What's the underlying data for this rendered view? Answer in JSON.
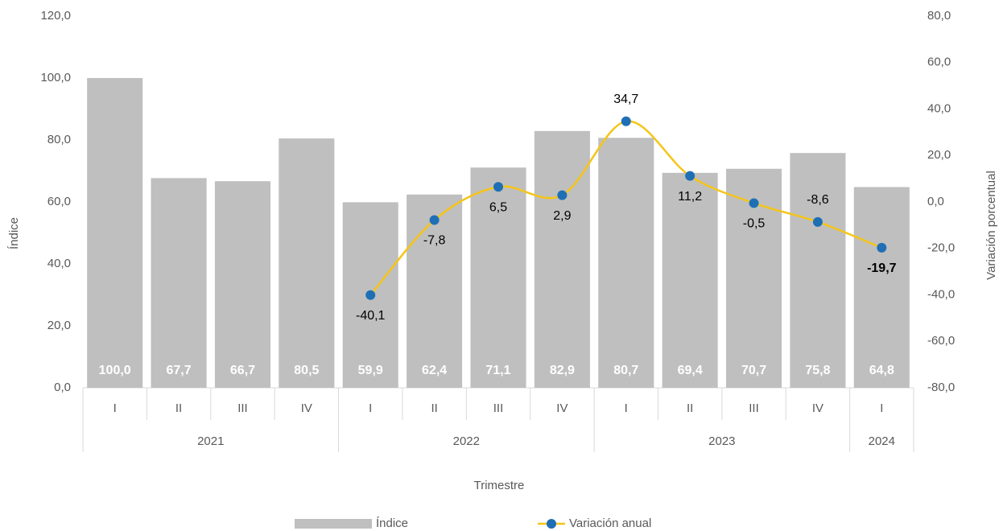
{
  "chart_data": {
    "type": "bar_line",
    "categories": [
      "I",
      "II",
      "III",
      "IV",
      "I",
      "II",
      "III",
      "IV",
      "I",
      "II",
      "III",
      "IV",
      "I"
    ],
    "groups": [
      {
        "name": "2021",
        "count": 4
      },
      {
        "name": "2022",
        "count": 4
      },
      {
        "name": "2023",
        "count": 4
      },
      {
        "name": "2024",
        "count": 1
      }
    ],
    "series": [
      {
        "name": "Índice",
        "type": "bar",
        "color": "#bfbfbf",
        "values": [
          100.0,
          67.7,
          66.7,
          80.5,
          59.9,
          62.4,
          71.1,
          82.9,
          80.7,
          69.4,
          70.7,
          75.8,
          64.8
        ],
        "value_labels": [
          "100,0",
          "67,7",
          "66,7",
          "80,5",
          "59,9",
          "62,4",
          "71,1",
          "82,9",
          "80,7",
          "69,4",
          "70,7",
          "75,8",
          "64,8"
        ]
      },
      {
        "name": "Variación anual",
        "type": "line",
        "axis": "y2",
        "color": "#f5c518",
        "marker_color": "#1f6fb5",
        "values": [
          null,
          null,
          null,
          null,
          -40.1,
          -7.8,
          6.5,
          2.9,
          34.7,
          11.2,
          -0.5,
          -8.6,
          -19.7
        ],
        "value_labels": [
          null,
          null,
          null,
          null,
          "-40,1",
          "-7,8",
          "6,5",
          "2,9",
          "34,7",
          "11,2",
          "-0,5",
          "-8,6",
          "-19,7"
        ]
      }
    ],
    "ylim": [
      0,
      120
    ],
    "yticks": [
      {
        "value": 0,
        "label": "0,0"
      },
      {
        "value": 20,
        "label": "20,0"
      },
      {
        "value": 40,
        "label": "40,0"
      },
      {
        "value": 60,
        "label": "60,0"
      },
      {
        "value": 80,
        "label": "80,0"
      },
      {
        "value": 100,
        "label": "100,0"
      },
      {
        "value": 120,
        "label": "120,0"
      }
    ],
    "y2lim": [
      -80,
      80
    ],
    "y2ticks": [
      {
        "value": -80,
        "label": "-80,0"
      },
      {
        "value": -60,
        "label": "-60,0"
      },
      {
        "value": -40,
        "label": "-40,0"
      },
      {
        "value": -20,
        "label": "-20,0"
      },
      {
        "value": 0,
        "label": "0,0"
      },
      {
        "value": 20,
        "label": "20,0"
      },
      {
        "value": 40,
        "label": "40,0"
      },
      {
        "value": 60,
        "label": "60,0"
      },
      {
        "value": 80,
        "label": "80,0"
      }
    ],
    "x_label": "Trimestre",
    "y_label": "Índice",
    "y2_label": "Variación porcentual",
    "legend": "bottom"
  }
}
